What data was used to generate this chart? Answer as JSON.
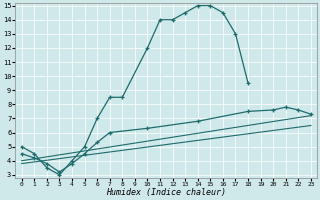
{
  "xlabel": "Humidex (Indice chaleur)",
  "xlim": [
    -0.5,
    23.5
  ],
  "ylim": [
    2.8,
    15.2
  ],
  "yticks": [
    3,
    4,
    5,
    6,
    7,
    8,
    9,
    10,
    11,
    12,
    13,
    14,
    15
  ],
  "xticks": [
    0,
    1,
    2,
    3,
    4,
    5,
    6,
    7,
    8,
    9,
    10,
    11,
    12,
    13,
    14,
    15,
    16,
    17,
    18,
    19,
    20,
    21,
    22,
    23
  ],
  "bg_color": "#cfe8ea",
  "line_color": "#1e6b6b",
  "line1_x": [
    0,
    1,
    2,
    3,
    4,
    5,
    6,
    7,
    8,
    10,
    11,
    12,
    13,
    14,
    15,
    16,
    17,
    18
  ],
  "line1_y": [
    5.0,
    4.5,
    3.5,
    3.0,
    4.0,
    5.0,
    7.0,
    8.5,
    8.5,
    12.0,
    14.0,
    14.0,
    14.5,
    15.0,
    15.0,
    14.5,
    13.0,
    9.5
  ],
  "line2_x": [
    0,
    1,
    2,
    3,
    4,
    5,
    6,
    7,
    10,
    14,
    18,
    20,
    21,
    22,
    23
  ],
  "line2_y": [
    4.5,
    4.2,
    3.8,
    3.2,
    3.8,
    4.5,
    5.3,
    6.0,
    6.3,
    6.8,
    7.5,
    7.6,
    7.8,
    7.6,
    7.3
  ],
  "line3_x": [
    0,
    23
  ],
  "line3_y": [
    4.0,
    7.2
  ],
  "line4_x": [
    0,
    23
  ],
  "line4_y": [
    3.8,
    6.5
  ]
}
